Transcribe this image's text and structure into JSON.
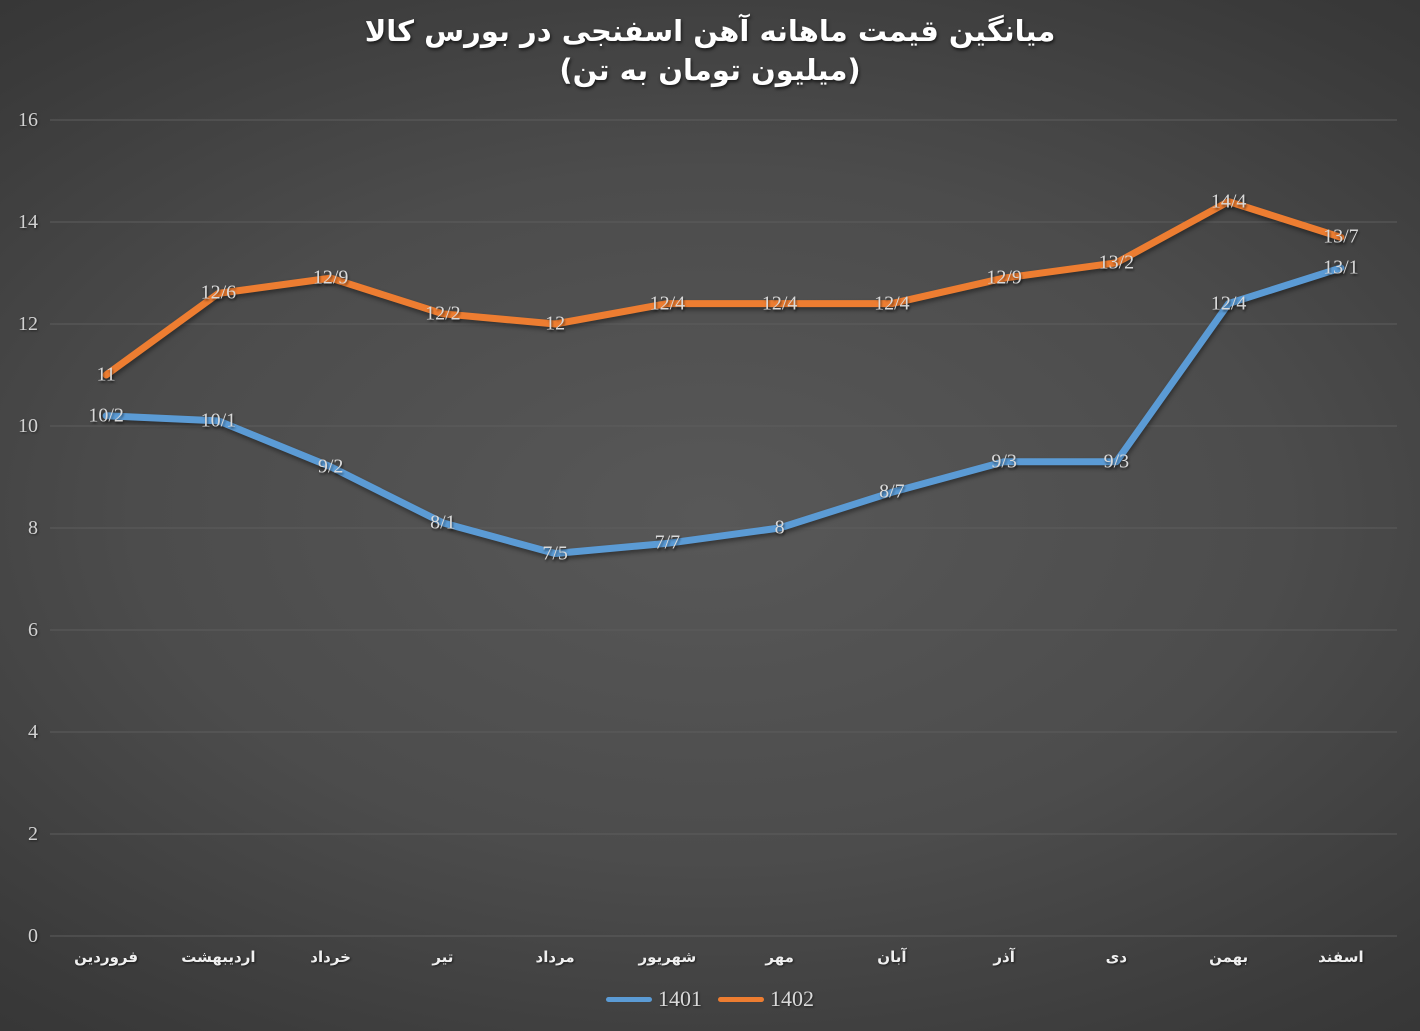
{
  "chart_data": {
    "type": "line",
    "title": "میانگین قیمت ماهانه آهن اسفنجی در بورس کالا",
    "subtitle": "(میلیون تومان به تن)",
    "categories": [
      "فروردین",
      "اردیبهشت",
      "خرداد",
      "تیر",
      "مرداد",
      "شهریور",
      "مهر",
      "آبان",
      "آذر",
      "دی",
      "بهمن",
      "اسفند"
    ],
    "series": [
      {
        "name": "1401",
        "color": "#5B9BD5",
        "values": [
          10.2,
          10.1,
          9.2,
          8.1,
          7.5,
          7.7,
          8,
          8.7,
          9.3,
          9.3,
          12.4,
          13.1
        ],
        "labels": [
          "10/2",
          "10/1",
          "9/2",
          "8/1",
          "7/5",
          "7/7",
          "8",
          "8/7",
          "9/3",
          "9/3",
          "12/4",
          "13/1"
        ]
      },
      {
        "name": "1402",
        "color": "#ED7D31",
        "values": [
          11,
          12.6,
          12.9,
          12.2,
          12,
          12.4,
          12.4,
          12.4,
          12.9,
          13.2,
          14.4,
          13.7
        ],
        "labels": [
          "11",
          "12/6",
          "12/9",
          "12/2",
          "12",
          "12/4",
          "12/4",
          "12/4",
          "12/9",
          "13/2",
          "14/4",
          "13/7"
        ]
      }
    ],
    "xlabel": "",
    "ylabel": "",
    "ylim": [
      0,
      16
    ],
    "yticks": [
      "0",
      "2",
      "4",
      "6",
      "8",
      "10",
      "12",
      "14",
      "16"
    ],
    "grid": "horizontal",
    "legend_position": "bottom"
  },
  "colors": {
    "background_center": "#585858",
    "background_edge": "#262626",
    "gridline": "#5d5d5d",
    "title_text": "#ffffff",
    "axis_text": "#d2d2d2",
    "category_text": "#f0f0f0",
    "data_label_text": "#d9d9d9",
    "series_1401": "#5B9BD5",
    "series_1402": "#ED7D31"
  }
}
